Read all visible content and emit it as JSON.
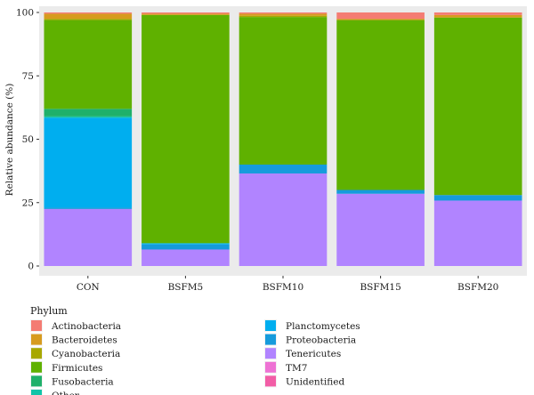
{
  "chart_data": {
    "type": "bar",
    "stacked": true,
    "title": "",
    "xlabel": "",
    "ylabel": "Relative abundance (%)",
    "ylim": [
      0,
      100
    ],
    "yticks": [
      0,
      25,
      50,
      75,
      100
    ],
    "grid": false,
    "legend_position": "bottom",
    "legend_title": "Phylum",
    "categories": [
      "CON",
      "BSFM5",
      "BSFM10",
      "BSFM15",
      "BSFM20"
    ],
    "series": [
      {
        "name": "Tenericutes",
        "color": "#b184ff",
        "values": [
          22.5,
          6.5,
          36.5,
          28.5,
          25.8
        ]
      },
      {
        "name": "Proteobacteria",
        "color": "#169bdc",
        "values": [
          0.5,
          2.0,
          3.5,
          1.5,
          2.2
        ]
      },
      {
        "name": "Planctomycetes",
        "color": "#00aeef",
        "values": [
          35.5,
          0.5,
          0.0,
          0.0,
          0.0
        ]
      },
      {
        "name": "Other",
        "color": "#10c4a8",
        "values": [
          0.5,
          0.0,
          0.0,
          0.0,
          0.0
        ]
      },
      {
        "name": "Fusobacteria",
        "color": "#1fb06a",
        "values": [
          3.0,
          0.0,
          0.0,
          0.0,
          0.0
        ]
      },
      {
        "name": "Firmicutes",
        "color": "#5fb100",
        "values": [
          35.0,
          90.0,
          58.2,
          67.0,
          70.0
        ]
      },
      {
        "name": "Cyanobacteria",
        "color": "#a8a800",
        "values": [
          0.5,
          0.0,
          0.5,
          0.0,
          0.0
        ]
      },
      {
        "name": "Bacteroidetes",
        "color": "#d79b1f",
        "values": [
          2.0,
          0.5,
          0.8,
          0.5,
          1.0
        ]
      },
      {
        "name": "Actinobacteria",
        "color": "#f47c73",
        "values": [
          0.5,
          0.5,
          0.5,
          2.5,
          1.0
        ]
      },
      {
        "name": "TM7",
        "color": "#ee72d4",
        "values": [
          0.0,
          0.0,
          0.0,
          0.0,
          0.0
        ]
      },
      {
        "name": "Unidentified",
        "color": "#f25da6",
        "values": [
          0.0,
          0.0,
          0.0,
          0.0,
          0.0
        ]
      }
    ],
    "legend_order": [
      [
        "Actinobacteria",
        "Bacteroidetes",
        "Cyanobacteria",
        "Firmicutes",
        "Fusobacteria",
        "Other"
      ],
      [
        "Planctomycetes",
        "Proteobacteria",
        "Tenericutes",
        "TM7",
        "Unidentified"
      ]
    ],
    "panel_background": "#ebebeb"
  }
}
